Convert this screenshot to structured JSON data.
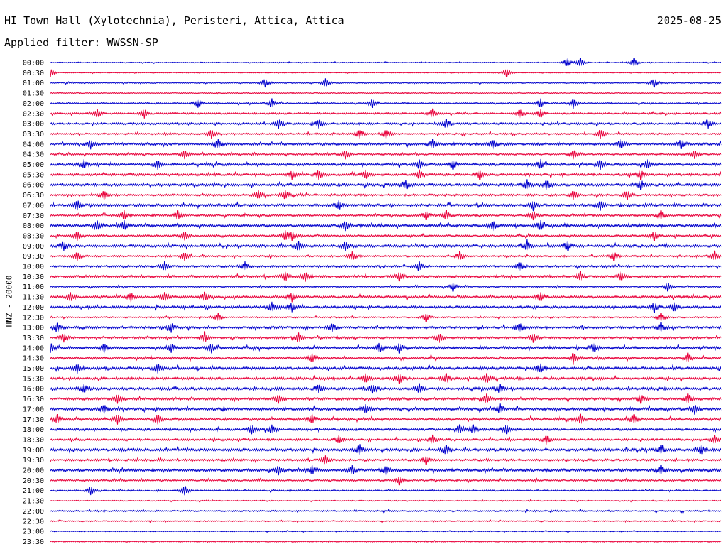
{
  "header": {
    "station": "HI Town Hall (Xylotechnia), Peristeri, Attica, Attica",
    "date": "2025-08-25",
    "filter": "Applied filter: WWSSN-SP"
  },
  "colors": {
    "even_trace": "#0000cc",
    "odd_trace": "#e8003a",
    "text": "#000000"
  },
  "chart_data": {
    "type": "line",
    "title": "HI Town Hall (Xylotechnia), Peristeri, Attica, Attica",
    "ylabel": "HNZ - 20000",
    "xlabel": "",
    "series_note": "",
    "row_labels": [
      "00:00",
      "00:30",
      "01:00",
      "01:30",
      "02:00",
      "02:30",
      "03:00",
      "03:30",
      "04:00",
      "04:30",
      "05:00",
      "05:30",
      "06:00",
      "06:30",
      "07:00",
      "07:30",
      "08:00",
      "08:30",
      "09:00",
      "09:30",
      "10:00",
      "10:30",
      "11:00",
      "11:30",
      "12:00",
      "12:30",
      "13:00",
      "13:30",
      "14:00",
      "14:30",
      "15:00",
      "15:30",
      "16:00",
      "16:30",
      "17:00",
      "17:30",
      "18:00",
      "18:30",
      "19:00",
      "19:30",
      "20:00",
      "20:30",
      "21:00",
      "21:30",
      "22:00",
      "22:30",
      "23:00",
      "23:30"
    ],
    "row_colors": [
      "blue",
      "red"
    ],
    "rows": [
      {
        "label": "00:00",
        "noise": 0.6,
        "events": [
          0.77,
          0.79,
          0.87
        ]
      },
      {
        "label": "00:30",
        "noise": 0.5,
        "events": [
          0.0,
          0.68
        ]
      },
      {
        "label": "01:00",
        "noise": 0.8,
        "events": [
          0.32,
          0.41,
          0.9
        ]
      },
      {
        "label": "01:30",
        "noise": 0.8,
        "events": []
      },
      {
        "label": "02:00",
        "noise": 1.0,
        "events": [
          0.22,
          0.33,
          0.48,
          0.73,
          0.78
        ]
      },
      {
        "label": "02:30",
        "noise": 1.2,
        "events": [
          0.07,
          0.14,
          0.57,
          0.7,
          0.73
        ]
      },
      {
        "label": "03:00",
        "noise": 1.4,
        "events": [
          0.34,
          0.4,
          0.59,
          0.98
        ]
      },
      {
        "label": "03:30",
        "noise": 1.2,
        "events": [
          0.24,
          0.46,
          0.5,
          0.82
        ]
      },
      {
        "label": "04:00",
        "noise": 1.6,
        "events": [
          0.06,
          0.25,
          0.57,
          0.66,
          0.85,
          0.94
        ]
      },
      {
        "label": "04:30",
        "noise": 1.2,
        "events": [
          0.2,
          0.44,
          0.78,
          0.96
        ]
      },
      {
        "label": "05:00",
        "noise": 1.8,
        "events": [
          0.05,
          0.16,
          0.55,
          0.6,
          0.73,
          0.82,
          0.89
        ]
      },
      {
        "label": "05:30",
        "noise": 1.6,
        "events": [
          0.36,
          0.4,
          0.47,
          0.55,
          0.64,
          0.88
        ]
      },
      {
        "label": "06:00",
        "noise": 1.8,
        "events": [
          0.53,
          0.71,
          0.74,
          0.88
        ]
      },
      {
        "label": "06:30",
        "noise": 1.4,
        "events": [
          0.08,
          0.31,
          0.35,
          0.78,
          0.86
        ]
      },
      {
        "label": "07:00",
        "noise": 1.8,
        "events": [
          0.04,
          0.43,
          0.72,
          0.82
        ]
      },
      {
        "label": "07:30",
        "noise": 1.4,
        "events": [
          0.11,
          0.19,
          0.56,
          0.59,
          0.72,
          0.91
        ]
      },
      {
        "label": "08:00",
        "noise": 1.8,
        "events": [
          0.07,
          0.11,
          0.44,
          0.66,
          0.73
        ]
      },
      {
        "label": "08:30",
        "noise": 1.4,
        "events": [
          0.04,
          0.2,
          0.35,
          0.36,
          0.9
        ]
      },
      {
        "label": "09:00",
        "noise": 1.8,
        "events": [
          0.02,
          0.37,
          0.44,
          0.71,
          0.77
        ]
      },
      {
        "label": "09:30",
        "noise": 1.2,
        "events": [
          0.04,
          0.2,
          0.45,
          0.61,
          0.84,
          0.99
        ]
      },
      {
        "label": "10:00",
        "noise": 1.4,
        "events": [
          0.17,
          0.29,
          0.55,
          0.7
        ]
      },
      {
        "label": "10:30",
        "noise": 1.6,
        "events": [
          0.35,
          0.38,
          0.52,
          0.79,
          0.85
        ]
      },
      {
        "label": "11:00",
        "noise": 1.0,
        "events": [
          0.6,
          0.92
        ]
      },
      {
        "label": "11:30",
        "noise": 1.6,
        "events": [
          0.03,
          0.12,
          0.17,
          0.23,
          0.36,
          0.73
        ]
      },
      {
        "label": "12:00",
        "noise": 1.6,
        "events": [
          0.33,
          0.36,
          0.9,
          0.93
        ]
      },
      {
        "label": "12:30",
        "noise": 1.0,
        "events": [
          0.25,
          0.56,
          0.91
        ]
      },
      {
        "label": "13:00",
        "noise": 1.6,
        "events": [
          0.01,
          0.18,
          0.42,
          0.7,
          0.91
        ]
      },
      {
        "label": "13:30",
        "noise": 1.4,
        "events": [
          0.02,
          0.23,
          0.37,
          0.58,
          0.72
        ]
      },
      {
        "label": "14:00",
        "noise": 1.8,
        "events": [
          0.0,
          0.08,
          0.18,
          0.24,
          0.49,
          0.52,
          0.81
        ]
      },
      {
        "label": "14:30",
        "noise": 1.6,
        "events": [
          0.39,
          0.78,
          0.95
        ]
      },
      {
        "label": "15:00",
        "noise": 1.8,
        "events": [
          0.04,
          0.16,
          0.73
        ]
      },
      {
        "label": "15:30",
        "noise": 1.6,
        "events": [
          0.47,
          0.52,
          0.59,
          0.65
        ]
      },
      {
        "label": "16:00",
        "noise": 1.8,
        "events": [
          0.05,
          0.4,
          0.48,
          0.55,
          0.67
        ]
      },
      {
        "label": "16:30",
        "noise": 1.6,
        "events": [
          0.1,
          0.34,
          0.65,
          0.88,
          0.95
        ]
      },
      {
        "label": "17:00",
        "noise": 1.8,
        "events": [
          0.08,
          0.47,
          0.67,
          0.96
        ]
      },
      {
        "label": "17:30",
        "noise": 1.8,
        "events": [
          0.01,
          0.1,
          0.16,
          0.39,
          0.79,
          0.87
        ]
      },
      {
        "label": "18:00",
        "noise": 1.6,
        "events": [
          0.3,
          0.33,
          0.61,
          0.63,
          0.68
        ]
      },
      {
        "label": "18:30",
        "noise": 1.4,
        "events": [
          0.43,
          0.57,
          0.74,
          0.99
        ]
      },
      {
        "label": "19:00",
        "noise": 1.8,
        "events": [
          0.46,
          0.59,
          0.91,
          0.97
        ]
      },
      {
        "label": "19:30",
        "noise": 1.4,
        "events": [
          0.41,
          0.56
        ]
      },
      {
        "label": "20:00",
        "noise": 1.8,
        "events": [
          0.34,
          0.39,
          0.45,
          0.5,
          0.91
        ]
      },
      {
        "label": "20:30",
        "noise": 1.2,
        "events": [
          0.52
        ]
      },
      {
        "label": "21:00",
        "noise": 1.0,
        "events": [
          0.06,
          0.2
        ]
      },
      {
        "label": "21:30",
        "noise": 0.7,
        "events": []
      },
      {
        "label": "22:00",
        "noise": 1.0,
        "events": []
      },
      {
        "label": "22:30",
        "noise": 0.8,
        "events": []
      },
      {
        "label": "23:00",
        "noise": 0.6,
        "events": []
      },
      {
        "label": "23:30",
        "noise": 0.8,
        "events": []
      }
    ]
  }
}
